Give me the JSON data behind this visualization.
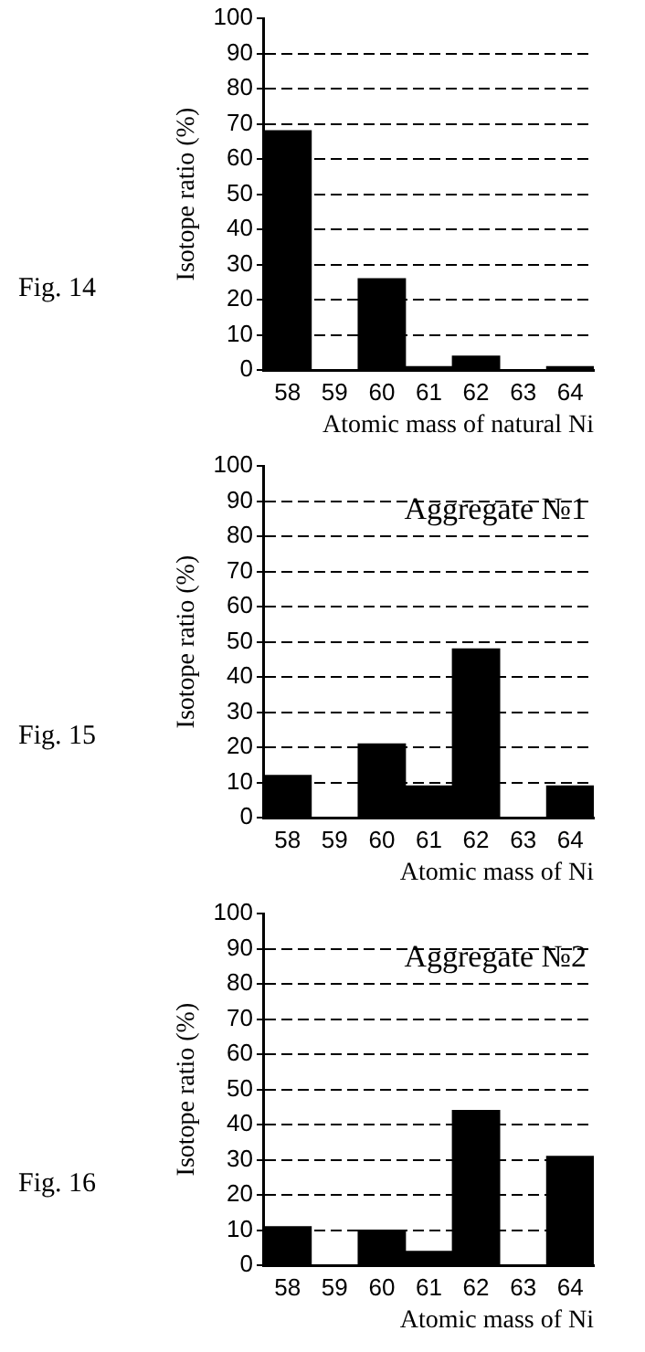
{
  "chart_data": [
    {
      "type": "bar",
      "title": "Fig. 14",
      "xlabel": "Atomic mass of natural Ni",
      "ylabel": "Isotope ratio (%)",
      "categories": [
        "58",
        "59",
        "60",
        "61",
        "62",
        "63",
        "64"
      ],
      "values": [
        68,
        0,
        26,
        1,
        4,
        0,
        1
      ],
      "color": "#000000",
      "ylim": [
        0,
        100
      ],
      "yticks": [
        0,
        10,
        20,
        30,
        40,
        50,
        60,
        70,
        80,
        90,
        100
      ],
      "grid": "y"
    },
    {
      "type": "bar",
      "title": "Fig. 15",
      "xlabel": "Atomic mass of Ni",
      "ylabel": "Isotope ratio (%)",
      "annotations": [
        "Aggregate №1"
      ],
      "categories": [
        "58",
        "59",
        "60",
        "61",
        "62",
        "63",
        "64"
      ],
      "values": [
        12,
        0,
        21,
        9,
        48,
        0,
        9
      ],
      "color": "#000000",
      "ylim": [
        0,
        100
      ],
      "yticks": [
        0,
        10,
        20,
        30,
        40,
        50,
        60,
        70,
        80,
        90,
        100
      ],
      "grid": "y"
    },
    {
      "type": "bar",
      "title": "Fig. 16",
      "xlabel": "Atomic mass of Ni",
      "ylabel": "Isotope ratio (%)",
      "annotations": [
        "Aggregate №2"
      ],
      "categories": [
        "58",
        "59",
        "60",
        "61",
        "62",
        "63",
        "64"
      ],
      "values": [
        11,
        0,
        10,
        4,
        44,
        0,
        31
      ],
      "color": "#000000",
      "ylim": [
        0,
        100
      ],
      "yticks": [
        0,
        10,
        20,
        30,
        40,
        50,
        60,
        70,
        80,
        90,
        100
      ],
      "grid": "y"
    }
  ]
}
